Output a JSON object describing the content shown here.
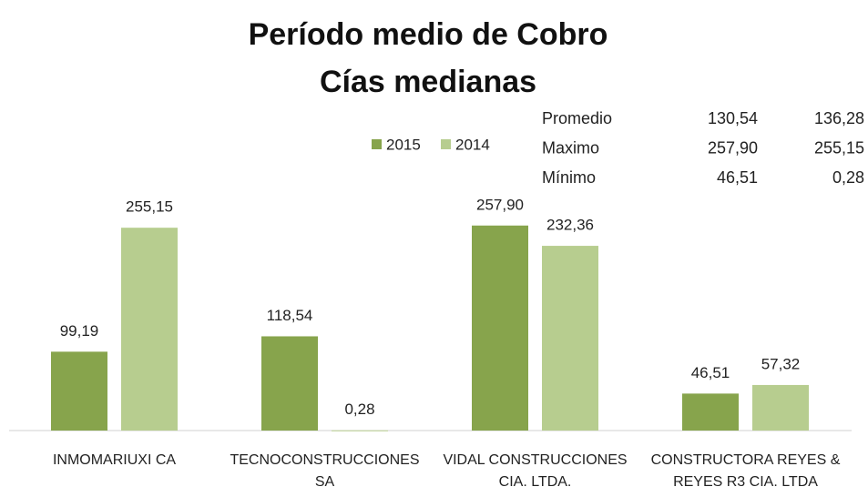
{
  "chart_data": {
    "type": "bar",
    "title": "Período medio de Cobro",
    "subtitle": "Cías medianas",
    "categories": [
      "INMOMARIUXI CA",
      "TECNOCONSTRUCCIONES SA",
      "VIDAL CONSTRUCCIONES CIA. LTDA.",
      "CONSTRUCTORA REYES & REYES R3 CIA. LTDA"
    ],
    "series": [
      {
        "name": "2015",
        "color": "#87a44c",
        "values": [
          99.19,
          118.54,
          257.9,
          46.51
        ],
        "value_labels": [
          "99,19",
          "118,54",
          "257,90",
          "46,51"
        ]
      },
      {
        "name": "2014",
        "color": "#b7cd8f",
        "values": [
          255.15,
          0.28,
          232.36,
          57.32
        ],
        "value_labels": [
          "255,15",
          "0,28",
          "232,36",
          "57,32"
        ]
      }
    ],
    "ylim": [
      0,
      300
    ],
    "stats": {
      "rows": [
        [
          "Promedio",
          "130,54",
          "136,28"
        ],
        [
          "Maximo",
          "257,90",
          "255,15"
        ],
        [
          "Mínimo",
          "46,51",
          "0,28"
        ]
      ]
    }
  }
}
